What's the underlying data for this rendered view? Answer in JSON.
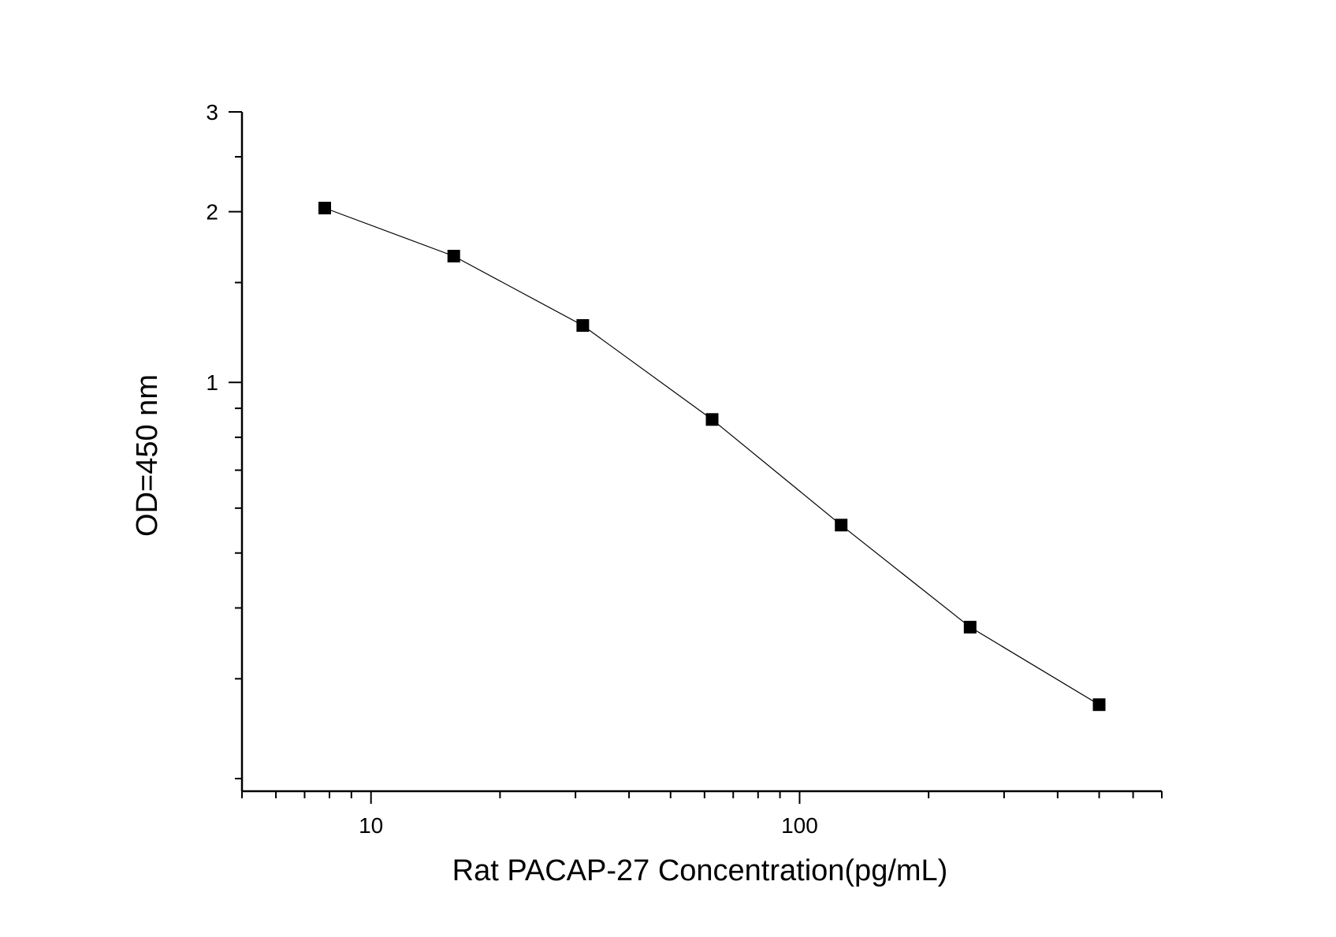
{
  "chart_data": {
    "type": "line",
    "title": "",
    "xlabel": "Rat PACAP-27  Concentration(pg/mL)",
    "ylabel": "OD=450 nm",
    "x_scale": "log",
    "y_scale": "log",
    "xlim": [
      5,
      700
    ],
    "ylim": [
      0.19,
      3
    ],
    "x_ticks": [
      {
        "value": 10,
        "label": "10"
      },
      {
        "value": 100,
        "label": "100"
      }
    ],
    "y_ticks": [
      {
        "value": 1,
        "label": "1"
      },
      {
        "value": 2,
        "label": "2"
      },
      {
        "value": 3,
        "label": "3"
      }
    ],
    "grid": false,
    "legend": "none",
    "marker": "square",
    "colors": {
      "line": "#000000",
      "marker": "#000000",
      "axis": "#000000"
    },
    "series": [
      {
        "x": [
          7.8,
          15.6,
          31.2,
          62.5,
          125,
          250,
          500
        ],
        "y": [
          2.03,
          1.67,
          1.26,
          0.86,
          0.56,
          0.37,
          0.27
        ]
      }
    ]
  }
}
